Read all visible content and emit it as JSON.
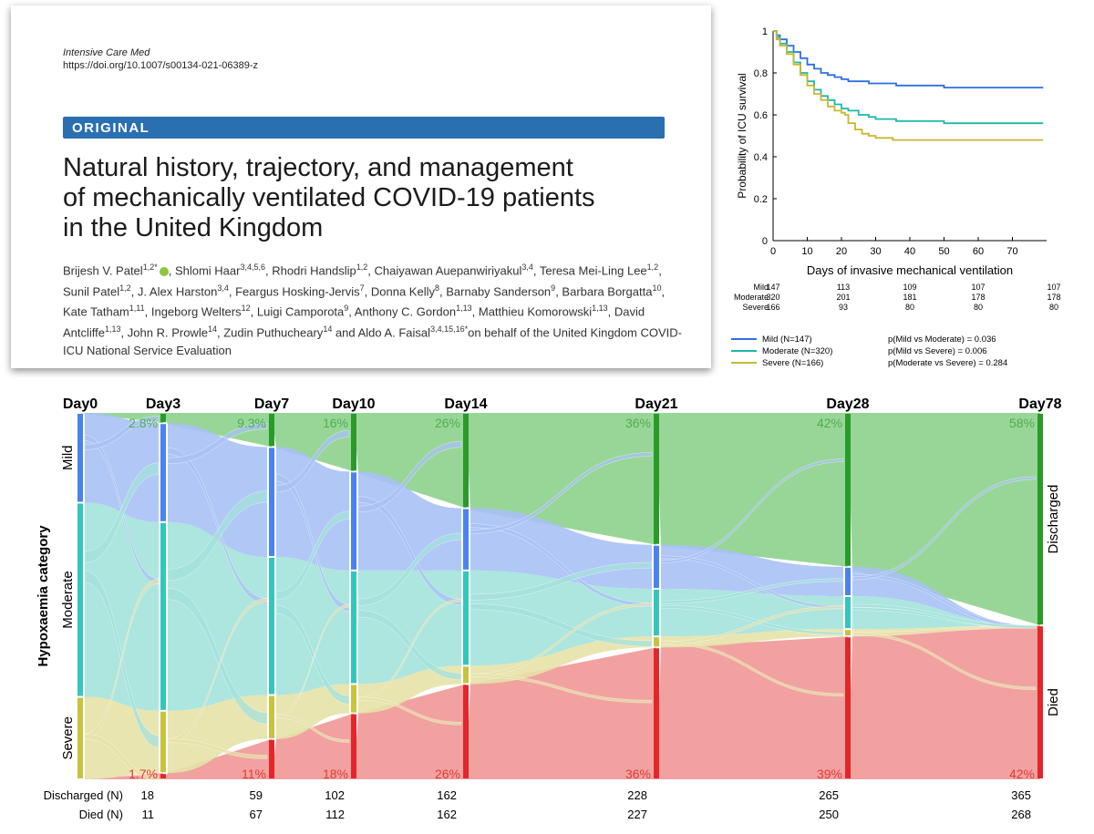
{
  "paper": {
    "journal": "Intensive Care Med",
    "doi": "https://doi.org/10.1007/s00134-021-06389-z",
    "banner": "ORIGINAL",
    "title_lines": [
      "Natural history, trajectory, and management",
      "of mechanically ventilated COVID-19 patients",
      "in the United Kingdom"
    ],
    "authors": [
      {
        "name": "Brijesh V. Patel",
        "sup": "1,2*",
        "orcid": true
      },
      {
        "name": "Shlomi Haar",
        "sup": "3,4,5,6"
      },
      {
        "name": "Rhodri Handslip",
        "sup": "1,2"
      },
      {
        "name": "Chaiyawan Auepanwiriyakul",
        "sup": "3,4"
      },
      {
        "name": "Teresa Mei-Ling Lee",
        "sup": "1,2"
      },
      {
        "name": "Sunil Patel",
        "sup": "1,2"
      },
      {
        "name": "J. Alex Harston",
        "sup": "3,4"
      },
      {
        "name": "Feargus Hosking-Jervis",
        "sup": "7"
      },
      {
        "name": "Donna Kelly",
        "sup": "8"
      },
      {
        "name": "Barnaby Sanderson",
        "sup": "9"
      },
      {
        "name": "Barbara Borgatta",
        "sup": "10"
      },
      {
        "name": "Kate Tatham",
        "sup": "1,11"
      },
      {
        "name": "Ingeborg Welters",
        "sup": "12"
      },
      {
        "name": "Luigi Camporota",
        "sup": "9"
      },
      {
        "name": "Anthony C. Gordon",
        "sup": "1,13"
      },
      {
        "name": "Matthieu Komorowski",
        "sup": "1,13"
      },
      {
        "name": "David Antcliffe",
        "sup": "1,13"
      },
      {
        "name": "John R. Prowle",
        "sup": "14"
      },
      {
        "name": "Zudin Puthucheary",
        "sup": "14"
      },
      {
        "name": "Aldo A. Faisal",
        "sup": "3,4,15,16*"
      }
    ],
    "author_conj": "and",
    "author_suffix": "on behalf of the United Kingdom COVID-ICU National Service Evaluation"
  },
  "chart_data": [
    {
      "type": "line",
      "title": "",
      "xlabel": "Days of invasive mechanical ventilation",
      "ylabel": "Probability of ICU survival",
      "xlim": [
        0,
        80
      ],
      "ylim": [
        0,
        1
      ],
      "xticks": [
        "0",
        "10",
        "20",
        "30",
        "40",
        "50",
        "60",
        "70"
      ],
      "yticks": [
        "0",
        "0.2",
        "0.4",
        "0.6",
        "0.8",
        "1"
      ],
      "series": [
        {
          "name": "Mild (N=147)",
          "color": "#2f6fde",
          "x": [
            0,
            1,
            2,
            4,
            6,
            8,
            10,
            12,
            14,
            16,
            18,
            20,
            22,
            25,
            28,
            30,
            33,
            36,
            40,
            45,
            50,
            55,
            60,
            65,
            70,
            78
          ],
          "y": [
            1,
            0.98,
            0.96,
            0.93,
            0.9,
            0.87,
            0.84,
            0.82,
            0.8,
            0.79,
            0.78,
            0.77,
            0.76,
            0.76,
            0.75,
            0.75,
            0.75,
            0.74,
            0.74,
            0.74,
            0.73,
            0.73,
            0.73,
            0.73,
            0.73,
            0.73
          ]
        },
        {
          "name": "Moderate (N=320)",
          "color": "#1fb8a8",
          "x": [
            0,
            1,
            2,
            4,
            6,
            8,
            10,
            12,
            14,
            16,
            18,
            20,
            22,
            25,
            28,
            30,
            33,
            36,
            40,
            45,
            50,
            55,
            60,
            65,
            70,
            78
          ],
          "y": [
            1,
            0.97,
            0.94,
            0.9,
            0.85,
            0.8,
            0.76,
            0.72,
            0.69,
            0.67,
            0.65,
            0.63,
            0.62,
            0.6,
            0.59,
            0.58,
            0.58,
            0.57,
            0.57,
            0.57,
            0.56,
            0.56,
            0.56,
            0.56,
            0.56,
            0.56
          ]
        },
        {
          "name": "Severe (N=166)",
          "color": "#c8b830",
          "x": [
            0,
            1,
            2,
            4,
            6,
            8,
            10,
            12,
            14,
            16,
            18,
            20,
            21,
            22,
            24,
            26,
            28,
            30,
            32,
            35,
            40,
            50,
            60,
            70,
            78
          ],
          "y": [
            1,
            0.96,
            0.93,
            0.89,
            0.84,
            0.79,
            0.74,
            0.7,
            0.67,
            0.64,
            0.62,
            0.61,
            0.6,
            0.56,
            0.53,
            0.51,
            0.5,
            0.49,
            0.49,
            0.48,
            0.48,
            0.48,
            0.48,
            0.48,
            0.48
          ]
        }
      ],
      "risk_table": {
        "rows": [
          {
            "label": "Mild",
            "values": [
              "147",
              "113",
              "109",
              "107",
              "107"
            ]
          },
          {
            "label": "Moderate",
            "values": [
              "320",
              "201",
              "181",
              "178",
              "178"
            ]
          },
          {
            "label": "Severe",
            "values": [
              "166",
              "93",
              "80",
              "80",
              "80"
            ]
          }
        ]
      },
      "legend": [
        "Mild (N=147)",
        "Moderate (N=320)",
        "Severe (N=166)"
      ],
      "pvalues": [
        "p(Mild vs Moderate) = 0.036",
        "p(Mild vs Severe) = 0.006",
        "p(Moderate vs Severe) = 0.284"
      ]
    },
    {
      "type": "sankey",
      "title": "",
      "ylabel": "Hypoxaemia category",
      "days": [
        "Day0",
        "Day3",
        "Day7",
        "Day10",
        "Day14",
        "Day21",
        "Day28",
        "Day78"
      ],
      "day_values": [
        0,
        3,
        7,
        10,
        14,
        21,
        28,
        78
      ],
      "category_labels": {
        "left": [
          "Mild",
          "Moderate",
          "Severe"
        ],
        "right": [
          "Discharged",
          "Died"
        ]
      },
      "colors": {
        "mild": "#4a82f0",
        "moderate": "#33c7bb",
        "severe": "#c8c33d",
        "discharged": "#2a9a2a",
        "died": "#e3262a",
        "mild_flow": "#a9c1f5",
        "moderate_flow": "#a4e2dc",
        "severe_flow": "#e6e2a9",
        "discharged_flow": "#98d698",
        "died_flow": "#f1a2a0"
      },
      "discharged_pct": [
        "2.8%",
        "9.3%",
        "16%",
        "26%",
        "36%",
        "42%",
        "58%"
      ],
      "died_pct": [
        "1.7%",
        "11%",
        "18%",
        "26%",
        "36%",
        "39%",
        "42%"
      ],
      "discharged_frac": [
        0.028,
        0.093,
        0.16,
        0.26,
        0.36,
        0.42,
        0.58
      ],
      "died_frac": [
        0.017,
        0.11,
        0.18,
        0.26,
        0.36,
        0.39,
        0.42
      ],
      "mild_frac": [
        0.245,
        0.27,
        0.3,
        0.27,
        0.17,
        0.12,
        0.08,
        0
      ],
      "severe_frac": [
        0.225,
        0.17,
        0.12,
        0.08,
        0.05,
        0.03,
        0.02,
        0
      ],
      "counts": {
        "discharged_label": "Discharged (N)",
        "died_label": "Died (N)",
        "discharged": [
          "18",
          "59",
          "102",
          "162",
          "228",
          "265",
          "365"
        ],
        "died": [
          "11",
          "67",
          "112",
          "162",
          "227",
          "250",
          "268"
        ]
      }
    }
  ]
}
